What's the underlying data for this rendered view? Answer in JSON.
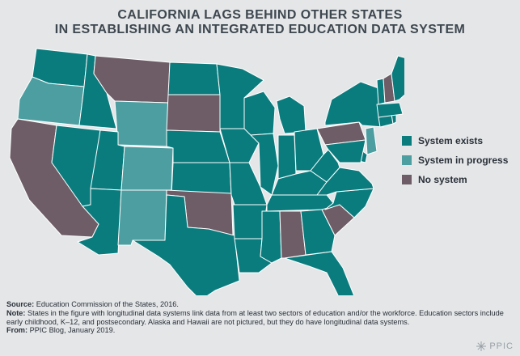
{
  "title_line1": "CALIFORNIA LAGS BEHIND OTHER STATES",
  "title_line2": "IN ESTABLISHING AN INTEGRATED EDUCATION DATA SYSTEM",
  "legend": [
    {
      "label": "System exists",
      "color": "#0b7c7e"
    },
    {
      "label": "System in progress",
      "color": "#4c9ea1"
    },
    {
      "label": "No system",
      "color": "#6e5d66"
    }
  ],
  "colors": {
    "exists": "#0b7c7e",
    "in_progress": "#4c9ea1",
    "no_system": "#6e5d66",
    "background": "#e4e6e8",
    "border": "#ffffff"
  },
  "states": {
    "in_progress": [
      "OR",
      "WY",
      "CO",
      "NM",
      "NJ"
    ],
    "no_system": [
      "CA",
      "MT",
      "SD",
      "OK",
      "AL",
      "SC",
      "PA",
      "NH"
    ]
  },
  "footer": {
    "source_label": "Source:",
    "source_text": " Education Commission of the States, 2016.",
    "note_label": "Note:",
    "note_text": " States in the figure with longitudinal data systems link data from at least two sectors of education and/or the workforce. Education sectors include early childhood, K–12, and postsecondary. Alaska and Hawaii are not pictured, but they do have longitudinal data systems.",
    "from_label": "From:",
    "from_text": " PPIC Blog, January 2019."
  },
  "logo_text": "PPIC"
}
